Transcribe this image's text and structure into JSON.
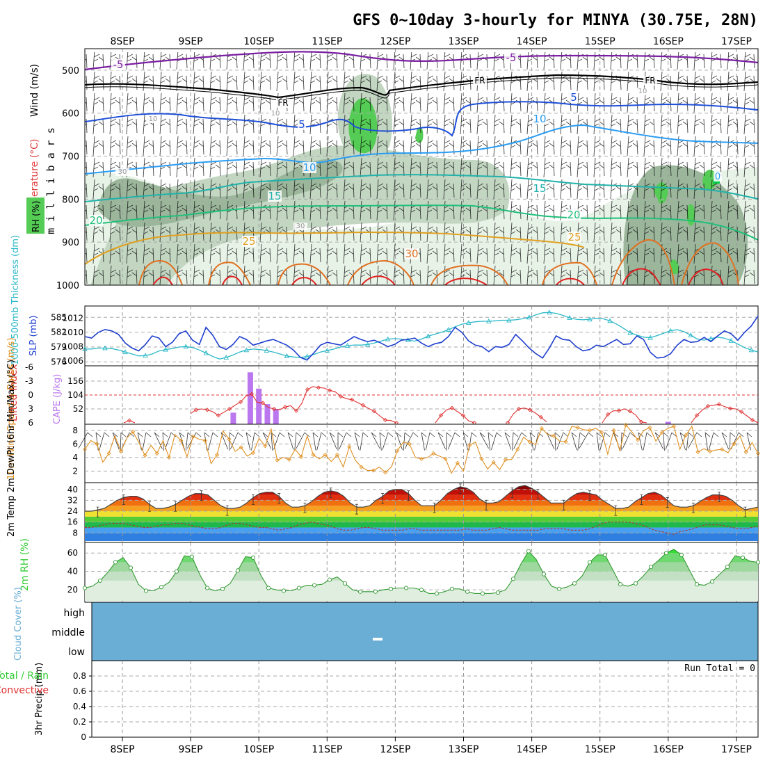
{
  "title": "GFS 0~10day 3-hourly for MINYA (30.75E, 28N)",
  "colors": {
    "temp_cold": "#7b1fa2",
    "temp_fr": "#000000",
    "temp_5": "#1e4fd8",
    "temp_10": "#2a9df4",
    "temp_15": "#20b2aa",
    "temp_20": "#1fbf7a",
    "temp_25": "#e0a020",
    "temp_30": "#e07020",
    "temp_35": "#e02020",
    "rh_light": "#e8f3e8",
    "rh_mid": "#c2d6c2",
    "rh_dark": "#9cb69c",
    "rh_green": "#55cc55",
    "slp": "#1f3fcf",
    "thickness": "#2ab8c8",
    "lifted_index": "#e03030",
    "cape": "#bb77ee",
    "wind_speed": "#e09020",
    "barb": "#000000",
    "rh2m": "#33cc33",
    "cloud": "#6aaed6",
    "grid": "#999999"
  },
  "chart_data": {
    "x_dates": [
      "8SEP",
      "9SEP",
      "10SEP",
      "11SEP",
      "12SEP",
      "13SEP",
      "14SEP",
      "15SEP",
      "16SEP",
      "17SEP"
    ],
    "upper_air": {
      "type": "contour",
      "ylabel": "m i l l i b a r s",
      "yticks": [
        "500",
        "600",
        "700",
        "800",
        "900",
        "1000"
      ],
      "legend": [
        "Wind (m/s)",
        "Temperature (°C)",
        "RH (%)"
      ],
      "contour_labels": [
        "-5",
        "-5",
        "FR",
        "FR",
        "FR",
        "5",
        "5",
        "10",
        "10",
        "10",
        "15",
        "15",
        "20",
        "20",
        "25",
        "25",
        "30",
        "10",
        "10",
        "30",
        "30",
        "10",
        "0"
      ]
    },
    "slp_thickness": {
      "type": "line",
      "left_label": "1000-500mb Thickness (dm)",
      "right_label": "SLP (mb)",
      "left_ticks": [
        "585",
        "582",
        "579",
        "576"
      ],
      "right_ticks": [
        "1012",
        "1010",
        "1008",
        "1006"
      ],
      "slp_ylim": [
        1005.5,
        1013.5
      ],
      "thickness_ylim": [
        575.5,
        587
      ],
      "slp": [
        1009.4,
        1009.2,
        1010.0,
        1010.4,
        1010.2,
        1009.7,
        1008.5,
        1007.8,
        1007.4,
        1008.3,
        1009.5,
        1009.2,
        1008.0,
        1008.6,
        1009.8,
        1010.2,
        1008.9,
        1008.3,
        1010.7,
        1009.6,
        1008.0,
        1007.6,
        1008.3,
        1009.4,
        1009.0,
        1008.2,
        1008.5,
        1008.8,
        1009.0,
        1008.6,
        1008.2,
        1007.5,
        1006.5,
        1006.1,
        1007.1,
        1008.2,
        1008.6,
        1008.4,
        1008.2,
        1008.8,
        1009.4,
        1009.0,
        1008.7,
        1008.9,
        1008.5,
        1008.0,
        1008.3,
        1008.9,
        1009.0,
        1009.2,
        1008.5,
        1008.0,
        1008.4,
        1008.6,
        1009.4,
        1010.7,
        1010.0,
        1008.8,
        1008.2,
        1008.0,
        1007.3,
        1008.0,
        1007.9,
        1008.3,
        1009.7,
        1008.8,
        1007.8,
        1007.0,
        1006.4,
        1007.8,
        1009.5,
        1009.0,
        1008.9,
        1008.0,
        1007.4,
        1007.6,
        1008.2,
        1008.0,
        1008.5,
        1009.0,
        1008.3,
        1008.4,
        1009.5,
        1009.0,
        1007.2,
        1006.4,
        1006.5,
        1007.0,
        1008.2,
        1009.0,
        1008.6,
        1008.7,
        1009.3,
        1008.7,
        1009.5,
        1010.2,
        1009.8,
        1008.9,
        1010.0,
        1010.9,
        1012.3
      ],
      "thickness": [
        578.6,
        578.6,
        578.8,
        578.8,
        578.7,
        578.4,
        578.0,
        577.6,
        577.2,
        577.3,
        577.6,
        578.2,
        578.5,
        578.7,
        579.0,
        579.1,
        578.9,
        578.4,
        577.8,
        577.1,
        576.6,
        576.9,
        577.4,
        578.0,
        578.4,
        578.6,
        578.5,
        578.3,
        578.0,
        577.6,
        577.2,
        577.0,
        576.9,
        577.1,
        577.5,
        578.0,
        578.3,
        578.6,
        579.0,
        579.3,
        579.4,
        579.4,
        579.5,
        579.8,
        580.2,
        580.6,
        580.7,
        580.6,
        580.4,
        580.2,
        580.6,
        581.2,
        581.6,
        582.0,
        582.5,
        583.1,
        583.6,
        583.9,
        584.1,
        584.2,
        584.2,
        584.3,
        584.4,
        584.4,
        584.5,
        584.7,
        585.0,
        585.5,
        585.9,
        586.0,
        585.8,
        585.4,
        584.9,
        584.6,
        584.5,
        584.6,
        584.8,
        584.7,
        584.3,
        583.6,
        582.8,
        581.9,
        581.4,
        581.0,
        580.9,
        581.3,
        581.8,
        582.3,
        582.5,
        582.1,
        581.4,
        580.6,
        580.4,
        580.7,
        581.0,
        580.8,
        580.3,
        579.6,
        578.9,
        578.4,
        578.0
      ]
    },
    "li_cape": {
      "type": "line+bar",
      "left_label": "Lifted Index",
      "right_label": "CAPE (J/kg)",
      "left_ticks": [
        "-6",
        "-3",
        "0",
        "3",
        "6"
      ],
      "right_ticks": [
        "156",
        "104",
        "52"
      ],
      "li_ylim": [
        6,
        -6
      ],
      "cape_ylim": [
        0,
        208
      ],
      "lifted_index": [
        null,
        null,
        null,
        null,
        null,
        null,
        null,
        6.0,
        5.5,
        6.0,
        null,
        null,
        null,
        null,
        null,
        null,
        null,
        null,
        null,
        4.0,
        3.2,
        3.0,
        3.2,
        3.6,
        4.4,
        3.7,
        3.0,
        2.2,
        1.5,
        0.2,
        -0.2,
        1.6,
        1.7,
        2.7,
        3.0,
        3.2,
        2.6,
        2.3,
        3.4,
        1.8,
        -1.2,
        -1.8,
        -1.6,
        -1.5,
        -1.0,
        -0.7,
        0.3,
        0.8,
        1.0,
        1.6,
        2.2,
        2.9,
        3.5,
        4.5,
        5.4,
        5.5,
        6.0,
        null,
        null,
        null,
        null,
        null,
        null,
        6.0,
        4.4,
        3.2,
        2.8,
        3.6,
        4.4,
        5.6,
        6.0,
        null,
        null,
        null,
        null,
        null,
        6.0,
        4.1,
        3.0,
        2.8,
        3.2,
        3.9,
        4.8,
        5.8,
        null,
        null,
        null,
        null,
        null,
        null,
        null,
        null,
        null,
        6.0,
        4.2,
        3.4,
        3.4,
        3.0,
        3.5,
        4.3,
        5.8,
        6.0,
        null,
        null,
        null,
        null,
        null,
        null,
        null,
        6.0,
        4.4,
        3.2,
        2.4,
        2.2,
        2.0,
        2.5,
        2.9,
        3.0,
        3.6,
        4.5,
        5.4,
        6.0
      ],
      "cape": [
        {
          "x": "9SEP",
          "offset_h": 15,
          "value": 38
        },
        {
          "x": "9SEP",
          "offset_h": 21,
          "value": 189
        },
        {
          "x": "10SEP",
          "offset_h": 0,
          "value": 128
        },
        {
          "x": "10SEP",
          "offset_h": 3,
          "value": 70
        },
        {
          "x": "10SEP",
          "offset_h": 6,
          "value": 52
        },
        {
          "x": "16SEP",
          "offset_h": 0,
          "value": 4
        }
      ]
    },
    "wind10m": {
      "type": "line",
      "label": "10m Wind Speed & Barbs (m/s)",
      "ticks": [
        "8",
        "6",
        "4",
        "2"
      ],
      "ylim": [
        0.5,
        8.7
      ],
      "values": [
        5.2,
        6.5,
        6.0,
        3.3,
        4.6,
        7.2,
        4.9,
        6.9,
        7.8,
        6.2,
        4.3,
        5.8,
        4.6,
        6.5,
        4.0,
        7.4,
        6.5,
        4.1,
        7.1,
        6.7,
        6.5,
        3.1,
        4.4,
        7.9,
        6.7,
        4.9,
        5.5,
        4.2,
        4.7,
        6.8,
        5.7,
        8.2,
        3.6,
        4.0,
        3.7,
        5.2,
        4.1,
        7.2,
        4.4,
        3.8,
        4.4,
        3.4,
        4.4,
        2.6,
        5.6,
        3.6,
        2.6,
        2.1,
        2.1,
        2.6,
        1.8,
        2.6,
        5.0,
        6.3,
        6.0,
        4.0,
        3.8,
        4.0,
        4.6,
        4.2,
        3.8,
        1.7,
        3.2,
        2.0,
        5.8,
        6.3,
        3.8,
        2.3,
        3.3,
        2.2,
        3.7,
        3.7,
        5.2,
        7.0,
        6.3,
        5.9,
        8.3,
        7.4,
        7.2,
        6.4,
        6.3,
        8.6,
        8.4,
        8.1,
        8.0,
        8.3,
        7.7,
        4.5,
        8.0,
        5.0,
        8.8,
        7.8,
        6.6,
        8.0,
        8.4,
        6.4,
        7.7,
        8.3,
        8.6,
        5.2,
        7.3,
        8.6,
        4.8,
        5.3,
        4.9,
        5.1,
        5.2,
        4.7,
        6.0,
        7.2,
        4.8,
        6.2,
        4.6
      ]
    },
    "temp2m": {
      "type": "area",
      "label": "2m Temp 2m DewPt (6hr Min/Max) (°C)",
      "ticks": [
        "40",
        "32",
        "24",
        "16",
        "8"
      ],
      "ylim": [
        2,
        44
      ],
      "temp": [
        24,
        24,
        25,
        26,
        29,
        32,
        34,
        35,
        35,
        33,
        29,
        26,
        26,
        27,
        29,
        32,
        35,
        37,
        37,
        36,
        32,
        28,
        26,
        26,
        27,
        30,
        34,
        37,
        38,
        38,
        35,
        30,
        27,
        27,
        28,
        31,
        35,
        38,
        39,
        38,
        35,
        30,
        27,
        27,
        28,
        32,
        35,
        39,
        40,
        40,
        37,
        32,
        28,
        28,
        28,
        32,
        37,
        40,
        42,
        41,
        38,
        33,
        30,
        30,
        31,
        35,
        39,
        42,
        43,
        41,
        38,
        34,
        30,
        30,
        30,
        34,
        37,
        38,
        37,
        36,
        32,
        29,
        26,
        26,
        27,
        31,
        34,
        37,
        38,
        36,
        32,
        28,
        27,
        27,
        28,
        31,
        34,
        36,
        36,
        35,
        32,
        28,
        25,
        26,
        27
      ],
      "dewpoint": [
        12,
        12,
        13,
        14,
        15,
        15,
        15,
        14,
        13,
        12,
        12,
        13,
        14,
        14,
        15,
        15,
        14,
        13,
        12,
        11,
        11,
        12,
        14,
        15,
        15,
        14,
        13,
        12,
        12,
        11,
        10,
        11,
        12,
        14,
        15,
        16,
        15,
        14,
        13,
        11,
        10,
        10,
        11,
        12,
        12,
        11,
        10,
        10,
        10,
        10,
        11,
        11,
        10,
        10,
        10,
        10,
        10,
        10,
        10,
        11,
        10,
        10,
        10,
        11,
        12,
        11,
        10,
        10,
        10,
        10,
        10,
        11,
        11,
        11,
        11,
        10,
        10,
        10,
        11,
        13,
        15,
        16,
        16,
        16,
        16,
        15,
        14,
        12,
        10,
        9,
        8,
        7,
        9,
        10,
        11,
        13,
        14,
        14,
        14,
        13,
        12,
        11,
        11,
        12,
        13
      ]
    },
    "rh2m": {
      "type": "area",
      "label": "2m RH (%)",
      "ticks": [
        "60",
        "40",
        "20"
      ],
      "ylim": [
        8,
        70
      ],
      "values": [
        22,
        24,
        30,
        39,
        50,
        55,
        44,
        26,
        19,
        19,
        23,
        28,
        40,
        57,
        56,
        37,
        22,
        19,
        21,
        27,
        41,
        56,
        55,
        36,
        22,
        20,
        19,
        19,
        22,
        25,
        25,
        26,
        31,
        34,
        27,
        20,
        18,
        18,
        18,
        20,
        21,
        22,
        22,
        22,
        20,
        16,
        16,
        18,
        21,
        21,
        18,
        16,
        16,
        16,
        17,
        20,
        32,
        48,
        62,
        53,
        37,
        24,
        21,
        23,
        27,
        35,
        50,
        58,
        58,
        42,
        26,
        24,
        27,
        35,
        45,
        52,
        60,
        64,
        58,
        42,
        26,
        25,
        29,
        37,
        45,
        57,
        55,
        51,
        50
      ]
    },
    "cloud": {
      "type": "heatmap",
      "label": "Cloud Cover (%)",
      "rows": [
        "high",
        "middle",
        "low"
      ],
      "mark": "-"
    },
    "precip": {
      "type": "bar",
      "label": "3hr Precip (mm)",
      "legend_left": [
        "Total / Rain",
        "Convective"
      ],
      "ticks": [
        "0.8",
        "0.6",
        "0.4",
        "0.2",
        "0"
      ],
      "ylim": [
        0,
        1
      ],
      "run_total": "Run Total = 0",
      "values": []
    }
  }
}
